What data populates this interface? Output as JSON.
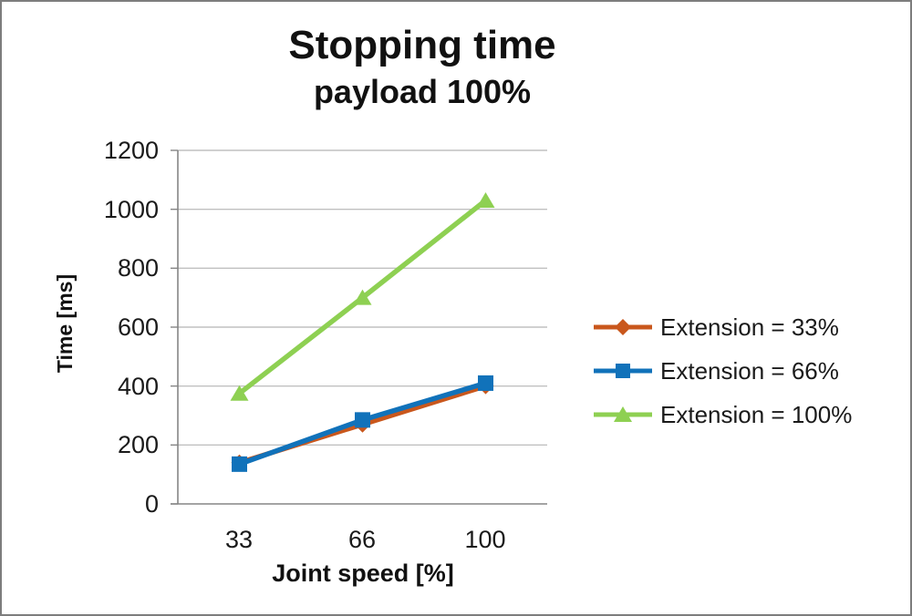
{
  "window": {
    "background": "#ffffff",
    "border_color": "#7d7d7d"
  },
  "chart_data": {
    "type": "line",
    "title": "Stopping time",
    "subtitle": "payload 100%",
    "xlabel": "Joint speed [%]",
    "ylabel": "Time [ms]",
    "categories": [
      "33",
      "66",
      "100"
    ],
    "ylim": [
      0,
      1200
    ],
    "yticks": [
      0,
      200,
      400,
      600,
      800,
      1000,
      1200
    ],
    "grid": "horizontal",
    "grid_color": "#c0c0c0",
    "axis_color": "#858585",
    "legend_position": "right",
    "series": [
      {
        "name": "Extension = 33%",
        "color": "#c9571c",
        "marker": "diamond",
        "values": [
          140,
          270,
          400
        ]
      },
      {
        "name": "Extension = 66%",
        "color": "#1172ba",
        "marker": "square",
        "values": [
          135,
          285,
          410
        ]
      },
      {
        "name": "Extension = 100%",
        "color": "#8ed052",
        "marker": "triangle",
        "values": [
          375,
          700,
          1030
        ]
      }
    ]
  }
}
